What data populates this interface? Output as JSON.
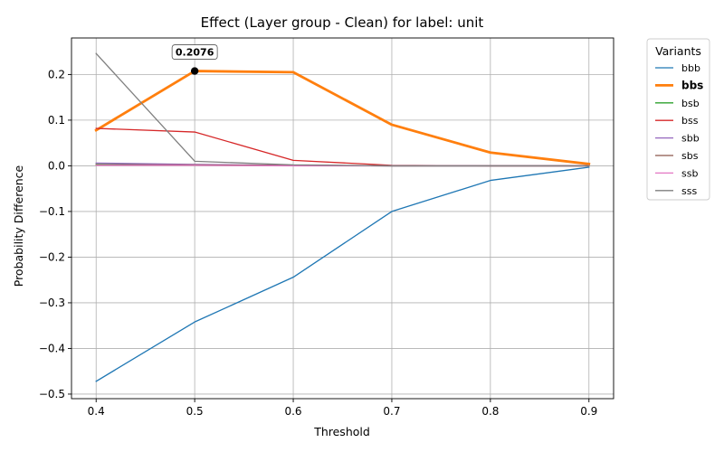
{
  "chart_data": {
    "type": "line",
    "title": "Effect (Layer group - Clean) for label: unit",
    "xlabel": "Threshold",
    "ylabel": "Probability Difference",
    "x": [
      0.4,
      0.5,
      0.6,
      0.7,
      0.8,
      0.9
    ],
    "xlim": [
      0.375,
      0.925
    ],
    "ylim": [
      -0.51,
      0.28
    ],
    "x_ticks": [
      "0.4",
      "0.5",
      "0.6",
      "0.7",
      "0.8",
      "0.9"
    ],
    "y_ticks": [
      0.2,
      0.1,
      0.0,
      -0.1,
      -0.2,
      -0.3,
      -0.4,
      -0.5
    ],
    "y_tick_labels": [
      "0.2",
      "0.1",
      "0.0",
      "−0.1",
      "−0.2",
      "−0.3",
      "−0.4",
      "−0.5"
    ],
    "grid": true,
    "legend": {
      "title": "Variants",
      "placement": "outside-right"
    },
    "series": [
      {
        "name": "bbb",
        "color": "#1f77b4",
        "highlight": false,
        "values": [
          -0.472,
          -0.342,
          -0.244,
          -0.1,
          -0.032,
          -0.003
        ]
      },
      {
        "name": "bbs",
        "color": "#ff7f0e",
        "highlight": true,
        "values": [
          0.078,
          0.2076,
          0.205,
          0.09,
          0.029,
          0.004
        ]
      },
      {
        "name": "bsb",
        "color": "#2ca02c",
        "highlight": false,
        "values": [
          0.003,
          0.002,
          0.001,
          0.0,
          0.0,
          0.0
        ]
      },
      {
        "name": "bss",
        "color": "#d62728",
        "highlight": false,
        "values": [
          0.082,
          0.074,
          0.012,
          0.001,
          0.0,
          0.0
        ]
      },
      {
        "name": "sbb",
        "color": "#9467bd",
        "highlight": false,
        "values": [
          0.006,
          0.003,
          0.001,
          0.0,
          0.0,
          0.0
        ]
      },
      {
        "name": "sbs",
        "color": "#8c564b",
        "highlight": false,
        "values": [
          0.002,
          0.002,
          0.001,
          0.0,
          0.0,
          0.0
        ]
      },
      {
        "name": "ssb",
        "color": "#e377c2",
        "highlight": false,
        "values": [
          0.001,
          0.001,
          0.0,
          0.0,
          0.0,
          0.0
        ]
      },
      {
        "name": "sss",
        "color": "#7f7f7f",
        "highlight": false,
        "values": [
          0.246,
          0.01,
          0.002,
          0.0,
          0.0,
          0.0
        ]
      }
    ],
    "annotation": {
      "series": "bbs",
      "x": 0.5,
      "y": 0.2076,
      "text": "0.2076"
    }
  }
}
